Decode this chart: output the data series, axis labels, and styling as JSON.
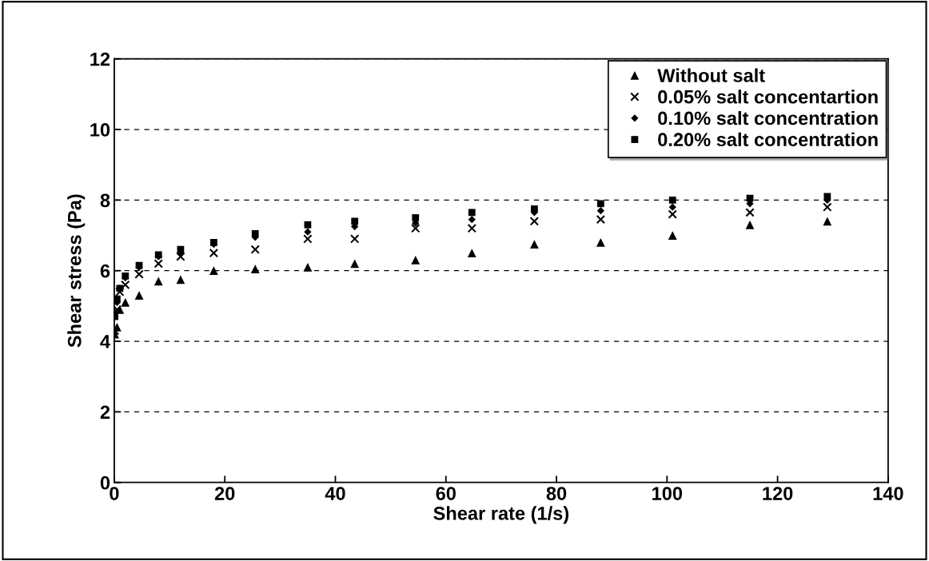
{
  "chart_data": {
    "type": "scatter",
    "xlabel": "Shear rate (1/s)",
    "ylabel": "Shear stress (Pa)",
    "x": [
      0.1,
      0.5,
      1,
      2,
      4.5,
      8,
      12,
      18,
      25.5,
      35,
      43.5,
      54.5,
      64.7,
      76,
      88,
      101,
      115,
      129
    ],
    "series": [
      {
        "name": "Without salt",
        "color": "#000000",
        "marker": "triangle",
        "values": [
          4.2,
          4.4,
          4.9,
          5.1,
          5.3,
          5.7,
          5.75,
          6.0,
          6.05,
          6.1,
          6.2,
          6.3,
          6.5,
          6.75,
          6.8,
          7.0,
          7.3,
          7.4
        ]
      },
      {
        "name": "0.05% salt concentartion",
        "color": "#000000",
        "marker": "cross",
        "values": [
          4.3,
          4.9,
          5.4,
          5.6,
          5.9,
          6.2,
          6.4,
          6.5,
          6.6,
          6.9,
          6.9,
          7.2,
          7.2,
          7.4,
          7.45,
          7.6,
          7.65,
          7.8
        ]
      },
      {
        "name": "0.10% salt concentration",
        "color": "#000000",
        "marker": "diamond",
        "values": [
          4.8,
          5.1,
          5.5,
          5.8,
          6.1,
          6.4,
          6.5,
          6.75,
          6.95,
          7.1,
          7.25,
          7.35,
          7.45,
          7.65,
          7.7,
          7.8,
          7.9,
          8.0
        ]
      },
      {
        "name": "0.20% salt concentration",
        "color": "#000000",
        "marker": "square",
        "values": [
          4.7,
          5.2,
          5.5,
          5.85,
          6.15,
          6.45,
          6.6,
          6.8,
          7.05,
          7.3,
          7.4,
          7.5,
          7.65,
          7.75,
          7.9,
          8.0,
          8.05,
          8.1
        ]
      }
    ],
    "xlim": [
      0,
      140
    ],
    "xticks": [
      0,
      20,
      40,
      60,
      80,
      100,
      120,
      140
    ],
    "ylim": [
      0,
      12
    ],
    "yticks": [
      0,
      2,
      4,
      6,
      8,
      10,
      12
    ],
    "grid": "y",
    "legend": "top right"
  }
}
